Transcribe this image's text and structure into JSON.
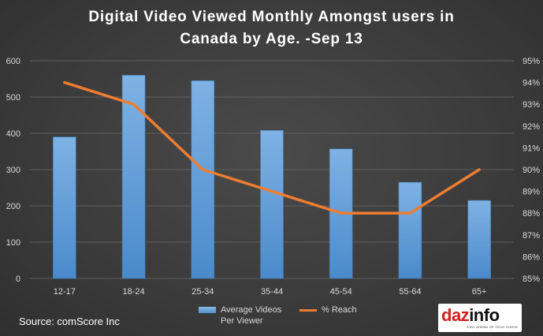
{
  "title_line1": "Digital Video Viewed Monthly Amongst users in",
  "title_line2": "Canada by Age. -Sep 13",
  "source": "Source: comScore Inc",
  "logo": {
    "part1": "daz",
    "part2": "info",
    "tagline": "STAY AHEAD OF TECH CURVE"
  },
  "colors": {
    "bar": "#5b9bd5",
    "line": "#ed7d31",
    "grid": "#5f5f5f",
    "text": "#d9d9d9"
  },
  "chart_data": {
    "type": "bar",
    "categories": [
      "12-17",
      "18-24",
      "25-34",
      "35-44",
      "45-54",
      "55-64",
      "65+"
    ],
    "series": [
      {
        "name": "Average Videos Per Viewer",
        "type": "bar",
        "axis": "left",
        "values": [
          390,
          560,
          545,
          408,
          357,
          265,
          215
        ]
      },
      {
        "name": "% Reach",
        "type": "line",
        "axis": "right",
        "values": [
          94,
          93,
          90,
          89,
          88,
          88,
          90
        ]
      }
    ],
    "y_left": {
      "min": 0,
      "max": 600,
      "ticks": [
        "0",
        "100",
        "200",
        "300",
        "400",
        "500",
        "600"
      ]
    },
    "y_right": {
      "min": 85,
      "max": 95,
      "ticks": [
        "85%",
        "86%",
        "87%",
        "88%",
        "89%",
        "90%",
        "91%",
        "92%",
        "93%",
        "94%",
        "95%"
      ]
    },
    "grid": true,
    "legend_position": "bottom"
  },
  "legend": {
    "bar_line1": "Average Videos",
    "bar_line2": "Per Viewer",
    "line_label": "% Reach"
  }
}
